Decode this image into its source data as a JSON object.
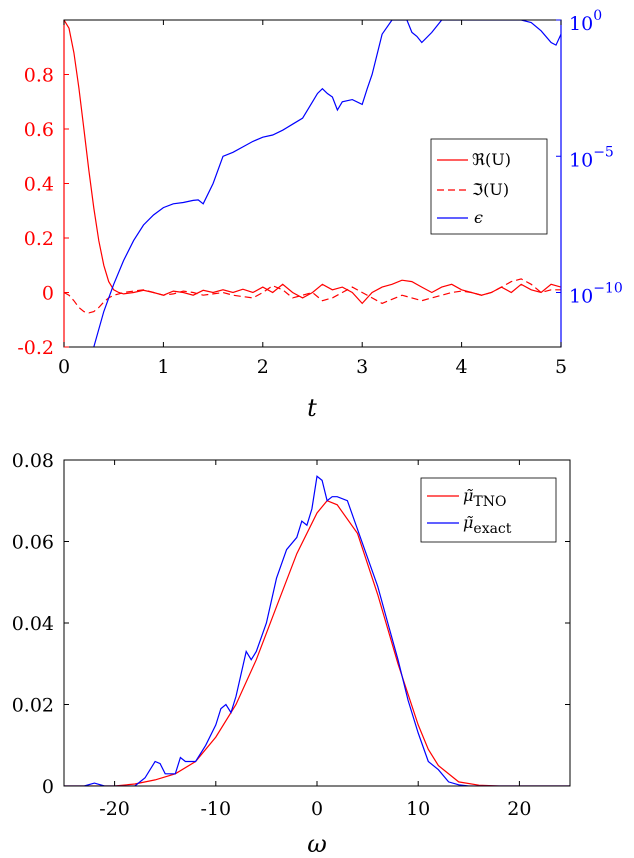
{
  "chart_data": [
    {
      "type": "line",
      "xlabel": "t",
      "xlim": [
        0,
        5
      ],
      "xticks": [
        0,
        1,
        2,
        3,
        4,
        5
      ],
      "xtick_labels": [
        "0",
        "1",
        "2",
        "3",
        "4",
        "5"
      ],
      "ylim": [
        -0.2,
        1.0
      ],
      "yticks": [
        -0.2,
        0,
        0.2,
        0.4,
        0.6,
        0.8
      ],
      "ytick_labels": [
        "-0.2",
        "0",
        "0.2",
        "0.4",
        "0.6",
        "0.8"
      ],
      "y2_scale": "log",
      "y2lim": [
        1e-12,
        1
      ],
      "y2ticks": [
        1e-10,
        1e-05,
        1
      ],
      "y2tick_base": "10",
      "y2tick_exponents": [
        "−10",
        "−5",
        "0"
      ],
      "left_axis_color": "#ff0000",
      "right_axis_color": "#0000ff",
      "legend_position": "right",
      "grid": false,
      "series": [
        {
          "name": "ℜ(U)",
          "axis": "left",
          "color": "#ff0000",
          "style": "solid",
          "x": [
            0,
            0.05,
            0.1,
            0.15,
            0.2,
            0.25,
            0.3,
            0.35,
            0.4,
            0.45,
            0.5,
            0.55,
            0.6,
            0.7,
            0.8,
            0.9,
            1.0,
            1.1,
            1.2,
            1.3,
            1.4,
            1.5,
            1.6,
            1.7,
            1.8,
            1.9,
            2.0,
            2.1,
            2.2,
            2.3,
            2.4,
            2.5,
            2.6,
            2.7,
            2.8,
            2.9,
            3.0,
            3.1,
            3.2,
            3.3,
            3.4,
            3.5,
            3.6,
            3.7,
            3.8,
            3.9,
            4.0,
            4.1,
            4.2,
            4.3,
            4.4,
            4.5,
            4.6,
            4.7,
            4.8,
            4.9,
            5.0
          ],
          "y": [
            1.0,
            0.97,
            0.88,
            0.75,
            0.6,
            0.45,
            0.31,
            0.19,
            0.1,
            0.04,
            0.01,
            0.0,
            -0.005,
            0.0,
            0.008,
            0.0,
            -0.01,
            0.005,
            0.0,
            -0.01,
            0.008,
            0.0,
            0.01,
            0.0,
            0.012,
            0.0,
            0.02,
            0.0,
            0.03,
            0.0,
            -0.02,
            0.0,
            0.03,
            0.01,
            0.02,
            0.0,
            -0.04,
            0.0,
            0.02,
            0.03,
            0.045,
            0.04,
            0.02,
            0.0,
            0.02,
            0.03,
            0.01,
            0.0,
            -0.01,
            0.0,
            0.02,
            0.0,
            0.03,
            0.01,
            0.0,
            0.03,
            0.02
          ]
        },
        {
          "name": "ℑ(U)",
          "axis": "left",
          "color": "#ff0000",
          "style": "dashed",
          "x": [
            0,
            0.05,
            0.1,
            0.15,
            0.2,
            0.25,
            0.3,
            0.35,
            0.4,
            0.45,
            0.5,
            0.55,
            0.6,
            0.7,
            0.8,
            0.9,
            1.0,
            1.1,
            1.2,
            1.3,
            1.4,
            1.5,
            1.6,
            1.7,
            1.8,
            1.9,
            2.0,
            2.1,
            2.2,
            2.3,
            2.4,
            2.5,
            2.6,
            2.7,
            2.8,
            2.9,
            3.0,
            3.1,
            3.2,
            3.3,
            3.4,
            3.5,
            3.6,
            3.7,
            3.8,
            3.9,
            4.0,
            4.1,
            4.2,
            4.3,
            4.4,
            4.5,
            4.6,
            4.7,
            4.8,
            4.9,
            5.0
          ],
          "y": [
            0.0,
            -0.01,
            -0.03,
            -0.055,
            -0.07,
            -0.075,
            -0.07,
            -0.055,
            -0.035,
            -0.02,
            -0.01,
            -0.005,
            0.0,
            0.005,
            0.01,
            0.0,
            -0.01,
            -0.005,
            0.005,
            0.0,
            -0.01,
            -0.005,
            0.0,
            -0.01,
            -0.015,
            -0.02,
            0.0,
            0.025,
            0.01,
            -0.02,
            -0.01,
            0.0,
            -0.03,
            -0.02,
            0.0,
            0.02,
            0.0,
            -0.02,
            -0.04,
            -0.025,
            -0.01,
            -0.02,
            -0.03,
            -0.02,
            -0.01,
            0.0,
            0.005,
            0.0,
            -0.01,
            0.0,
            0.02,
            0.04,
            0.05,
            0.03,
            0.0,
            0.01,
            0.01
          ]
        },
        {
          "name": "ϵ",
          "axis": "right",
          "color": "#0000ff",
          "style": "solid",
          "x": [
            0.3,
            0.4,
            0.5,
            0.6,
            0.7,
            0.8,
            0.9,
            1.0,
            1.1,
            1.2,
            1.3,
            1.35,
            1.4,
            1.5,
            1.6,
            1.7,
            1.8,
            1.9,
            2.0,
            2.1,
            2.2,
            2.3,
            2.4,
            2.5,
            2.55,
            2.6,
            2.65,
            2.7,
            2.75,
            2.8,
            2.9,
            3.0,
            3.05,
            3.1,
            3.2,
            3.3,
            3.4,
            3.45,
            3.5,
            3.55,
            3.6,
            3.7,
            3.8,
            3.9,
            4.0,
            4.1,
            4.2,
            4.3,
            4.4,
            4.5,
            4.6,
            4.7,
            4.8,
            4.9,
            4.95,
            5.0
          ],
          "y": [
            1e-12,
            2e-11,
            2e-10,
            1.5e-09,
            8e-09,
            3e-08,
            7e-08,
            1.3e-07,
            1.8e-07,
            2e-07,
            2.4e-07,
            2.5e-07,
            1.8e-07,
            1e-06,
            1e-05,
            1.4e-05,
            2.2e-05,
            3.5e-05,
            5e-05,
            6e-05,
            9e-05,
            0.00015,
            0.00025,
            0.001,
            0.002,
            0.003,
            0.002,
            0.0015,
            0.0005,
            0.001,
            0.0012,
            0.0008,
            0.003,
            0.01,
            0.3,
            1,
            1,
            1,
            0.35,
            0.25,
            0.15,
            0.35,
            1,
            1,
            1,
            1,
            1,
            1,
            1,
            1,
            1,
            0.8,
            0.4,
            0.15,
            0.12,
            0.3
          ]
        }
      ]
    },
    {
      "type": "line",
      "xlabel": "ω",
      "xlim": [
        -25,
        25
      ],
      "xticks": [
        -20,
        -10,
        0,
        10,
        20
      ],
      "xtick_labels": [
        "-20",
        "-10",
        "0",
        "10",
        "20"
      ],
      "ylim": [
        0,
        0.08
      ],
      "yticks": [
        0,
        0.02,
        0.04,
        0.06,
        0.08
      ],
      "ytick_labels": [
        "0",
        "0.02",
        "0.04",
        "0.06",
        "0.08"
      ],
      "legend_position": "top-right",
      "grid": false,
      "series": [
        {
          "name": "μ̃",
          "subscript": "TNO",
          "color": "#ff0000",
          "x": [
            -25,
            -22,
            -20,
            -18,
            -16,
            -14,
            -12,
            -10,
            -8,
            -6,
            -4,
            -2,
            0,
            1,
            2,
            4,
            6,
            8,
            10,
            11,
            12,
            14,
            16,
            18,
            20,
            22,
            25
          ],
          "y": [
            0,
            0,
            0,
            0.0005,
            0.0015,
            0.003,
            0.006,
            0.012,
            0.02,
            0.031,
            0.044,
            0.057,
            0.067,
            0.07,
            0.069,
            0.062,
            0.047,
            0.03,
            0.015,
            0.009,
            0.005,
            0.001,
            0.0002,
            0,
            0,
            0,
            0
          ]
        },
        {
          "name": "μ̃",
          "subscript": "exact",
          "color": "#0000ff",
          "x": [
            -25,
            -23,
            -22,
            -21,
            -20,
            -18,
            -17,
            -16,
            -15.5,
            -15,
            -14,
            -13.5,
            -13,
            -12,
            -11,
            -10,
            -9.5,
            -9,
            -8.5,
            -8,
            -7,
            -6.5,
            -6,
            -5,
            -4,
            -3,
            -2,
            -1.5,
            -1,
            -0.5,
            0,
            0.5,
            1,
            1.5,
            2,
            3,
            4,
            5,
            6,
            7,
            8,
            9,
            10,
            11,
            12,
            13,
            14,
            15,
            18,
            20,
            25
          ],
          "y": [
            0,
            0,
            0.0007,
            0,
            0,
            0,
            0.002,
            0.006,
            0.0055,
            0.003,
            0.003,
            0.007,
            0.006,
            0.006,
            0.01,
            0.015,
            0.019,
            0.02,
            0.018,
            0.022,
            0.033,
            0.031,
            0.033,
            0.04,
            0.051,
            0.058,
            0.061,
            0.065,
            0.064,
            0.068,
            0.076,
            0.075,
            0.07,
            0.071,
            0.071,
            0.07,
            0.063,
            0.056,
            0.049,
            0.04,
            0.031,
            0.021,
            0.013,
            0.006,
            0.004,
            0.001,
            0.0003,
            0,
            0,
            0,
            0
          ]
        }
      ]
    }
  ]
}
